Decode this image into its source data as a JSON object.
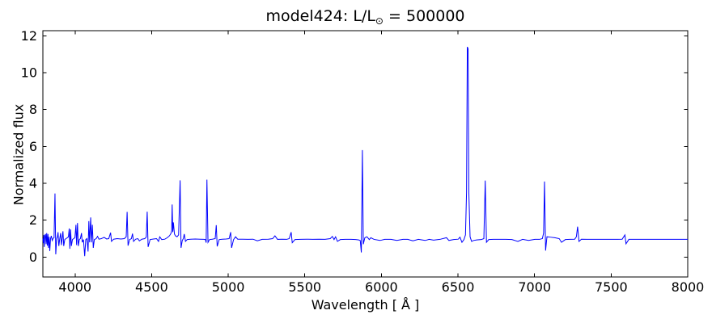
{
  "title": {
    "prefix": "model424: L/L",
    "sun_symbol": "⊙",
    "suffix": " = 500000"
  },
  "chart_data": {
    "type": "line",
    "title": "model424: L/L⊙ = 500000",
    "xlabel": "Wavelength [ Å ]",
    "ylabel": "Normalized flux",
    "xlim": [
      3790,
      8000
    ],
    "ylim": [
      -1.08,
      12.28
    ],
    "xticks": [
      4000,
      4500,
      5000,
      5500,
      6000,
      6500,
      7000,
      7500,
      8000
    ],
    "yticks": [
      0,
      2,
      4,
      6,
      8,
      10,
      12
    ],
    "grid": false,
    "legend": "none",
    "line_color": "#0000ff",
    "axis_color": "#000000",
    "background": "#ffffff",
    "series": [
      {
        "name": "normalized-flux-spectrum",
        "points": [
          [
            3790,
            1.0
          ],
          [
            3793,
            0.75
          ],
          [
            3796,
            1.2
          ],
          [
            3799,
            0.55
          ],
          [
            3803,
            1.15
          ],
          [
            3807,
            1.25
          ],
          [
            3811,
            0.7
          ],
          [
            3815,
            1.3
          ],
          [
            3819,
            0.62
          ],
          [
            3823,
            1.25
          ],
          [
            3827,
            0.5
          ],
          [
            3831,
            1.1
          ],
          [
            3835,
            0.33
          ],
          [
            3840,
            1.0
          ],
          [
            3845,
            1.15
          ],
          [
            3851,
            0.9
          ],
          [
            3857,
            1.02
          ],
          [
            3863,
            1.05
          ],
          [
            3869,
            3.45
          ],
          [
            3874,
            0.15
          ],
          [
            3880,
            1.0
          ],
          [
            3885,
            1.1
          ],
          [
            3889,
            1.35
          ],
          [
            3894,
            0.6
          ],
          [
            3900,
            1.0
          ],
          [
            3906,
            1.3
          ],
          [
            3911,
            0.65
          ],
          [
            3916,
            1.0
          ],
          [
            3921,
            1.4
          ],
          [
            3926,
            0.6
          ],
          [
            3933,
            0.95
          ],
          [
            3941,
            1.0
          ],
          [
            3950,
            1.05
          ],
          [
            3957,
            1.1
          ],
          [
            3962,
            1.55
          ],
          [
            3966,
            0.45
          ],
          [
            3971,
            1.5
          ],
          [
            3976,
            0.6
          ],
          [
            3983,
            0.95
          ],
          [
            3991,
            1.0
          ],
          [
            3999,
            1.05
          ],
          [
            4006,
            1.75
          ],
          [
            4010,
            0.65
          ],
          [
            4016,
            1.85
          ],
          [
            4021,
            0.6
          ],
          [
            4028,
            0.95
          ],
          [
            4035,
            1.0
          ],
          [
            4042,
            1.3
          ],
          [
            4047,
            0.8
          ],
          [
            4055,
            0.95
          ],
          [
            4063,
            0.05
          ],
          [
            4070,
            0.95
          ],
          [
            4078,
            1.0
          ],
          [
            4085,
            0.3
          ],
          [
            4090,
            1.95
          ],
          [
            4095,
            0.8
          ],
          [
            4102,
            2.15
          ],
          [
            4107,
            0.8
          ],
          [
            4113,
            1.75
          ],
          [
            4119,
            0.5
          ],
          [
            4126,
            0.95
          ],
          [
            4138,
            1.0
          ],
          [
            4147,
            1.12
          ],
          [
            4156,
            0.97
          ],
          [
            4172,
            1.0
          ],
          [
            4190,
            1.07
          ],
          [
            4206,
            0.98
          ],
          [
            4220,
            1.0
          ],
          [
            4232,
            1.32
          ],
          [
            4238,
            0.85
          ],
          [
            4252,
            0.97
          ],
          [
            4275,
            1.0
          ],
          [
            4300,
            0.98
          ],
          [
            4322,
            1.0
          ],
          [
            4334,
            1.1
          ],
          [
            4340,
            2.45
          ],
          [
            4346,
            0.62
          ],
          [
            4356,
            0.95
          ],
          [
            4368,
            1.0
          ],
          [
            4375,
            1.27
          ],
          [
            4382,
            0.85
          ],
          [
            4396,
            0.97
          ],
          [
            4410,
            1.0
          ],
          [
            4420,
            0.88
          ],
          [
            4436,
            0.97
          ],
          [
            4455,
            1.0
          ],
          [
            4465,
            1.08
          ],
          [
            4471,
            2.46
          ],
          [
            4477,
            0.55
          ],
          [
            4490,
            0.95
          ],
          [
            4512,
            0.98
          ],
          [
            4532,
            1.0
          ],
          [
            4545,
            0.85
          ],
          [
            4553,
            1.1
          ],
          [
            4566,
            0.95
          ],
          [
            4586,
            0.97
          ],
          [
            4602,
            1.05
          ],
          [
            4616,
            1.15
          ],
          [
            4626,
            1.28
          ],
          [
            4631,
            1.45
          ],
          [
            4634,
            2.85
          ],
          [
            4638,
            1.35
          ],
          [
            4642,
            1.88
          ],
          [
            4649,
            1.25
          ],
          [
            4656,
            1.15
          ],
          [
            4666,
            1.1
          ],
          [
            4676,
            1.2
          ],
          [
            4686,
            4.16
          ],
          [
            4692,
            0.5
          ],
          [
            4700,
            0.9
          ],
          [
            4707,
            1.0
          ],
          [
            4713,
            1.25
          ],
          [
            4721,
            0.85
          ],
          [
            4732,
            0.95
          ],
          [
            4755,
            0.97
          ],
          [
            4785,
            0.98
          ],
          [
            4815,
            0.97
          ],
          [
            4842,
            0.96
          ],
          [
            4851,
            0.95
          ],
          [
            4856,
            0.78
          ],
          [
            4861,
            4.2
          ],
          [
            4868,
            0.8
          ],
          [
            4878,
            0.95
          ],
          [
            4896,
            0.97
          ],
          [
            4915,
            1.0
          ],
          [
            4922,
            1.73
          ],
          [
            4928,
            0.58
          ],
          [
            4941,
            0.95
          ],
          [
            4962,
            0.97
          ],
          [
            4986,
            0.98
          ],
          [
            5006,
            1.0
          ],
          [
            5016,
            1.35
          ],
          [
            5022,
            0.5
          ],
          [
            5035,
            0.95
          ],
          [
            5048,
            1.1
          ],
          [
            5062,
            0.97
          ],
          [
            5095,
            0.97
          ],
          [
            5130,
            0.96
          ],
          [
            5162,
            0.97
          ],
          [
            5190,
            0.88
          ],
          [
            5222,
            0.96
          ],
          [
            5262,
            0.97
          ],
          [
            5290,
            1.0
          ],
          [
            5305,
            1.15
          ],
          [
            5322,
            0.96
          ],
          [
            5352,
            0.97
          ],
          [
            5382,
            0.96
          ],
          [
            5398,
            1.0
          ],
          [
            5411,
            1.35
          ],
          [
            5418,
            0.78
          ],
          [
            5436,
            0.95
          ],
          [
            5472,
            0.96
          ],
          [
            5512,
            0.97
          ],
          [
            5552,
            0.96
          ],
          [
            5592,
            0.97
          ],
          [
            5632,
            0.96
          ],
          [
            5666,
            1.0
          ],
          [
            5680,
            1.12
          ],
          [
            5691,
            0.95
          ],
          [
            5701,
            1.1
          ],
          [
            5713,
            0.85
          ],
          [
            5732,
            0.95
          ],
          [
            5766,
            0.96
          ],
          [
            5802,
            0.96
          ],
          [
            5832,
            0.95
          ],
          [
            5852,
            0.93
          ],
          [
            5862,
            0.9
          ],
          [
            5869,
            0.25
          ],
          [
            5876,
            5.8
          ],
          [
            5882,
            0.7
          ],
          [
            5892,
            1.05
          ],
          [
            5906,
            1.1
          ],
          [
            5921,
            0.95
          ],
          [
            5931,
            1.05
          ],
          [
            5952,
            0.96
          ],
          [
            5991,
            0.9
          ],
          [
            6022,
            0.96
          ],
          [
            6062,
            0.96
          ],
          [
            6101,
            0.9
          ],
          [
            6141,
            0.96
          ],
          [
            6172,
            0.96
          ],
          [
            6206,
            0.88
          ],
          [
            6242,
            0.96
          ],
          [
            6286,
            0.9
          ],
          [
            6312,
            0.96
          ],
          [
            6341,
            0.92
          ],
          [
            6382,
            0.96
          ],
          [
            6425,
            1.05
          ],
          [
            6441,
            0.9
          ],
          [
            6472,
            0.95
          ],
          [
            6502,
            0.97
          ],
          [
            6513,
            1.08
          ],
          [
            6526,
            0.8
          ],
          [
            6539,
            0.95
          ],
          [
            6549,
            1.2
          ],
          [
            6556,
            3.5
          ],
          [
            6561,
            11.4
          ],
          [
            6566,
            11.3
          ],
          [
            6571,
            3.5
          ],
          [
            6579,
            1.1
          ],
          [
            6589,
            0.85
          ],
          [
            6602,
            0.9
          ],
          [
            6622,
            0.93
          ],
          [
            6652,
            0.95
          ],
          [
            6669,
            1.0
          ],
          [
            6678,
            4.15
          ],
          [
            6686,
            0.8
          ],
          [
            6701,
            0.95
          ],
          [
            6732,
            0.96
          ],
          [
            6772,
            0.96
          ],
          [
            6812,
            0.96
          ],
          [
            6852,
            0.95
          ],
          [
            6891,
            0.85
          ],
          [
            6922,
            0.96
          ],
          [
            6961,
            0.9
          ],
          [
            7002,
            0.96
          ],
          [
            7032,
            0.96
          ],
          [
            7051,
            1.0
          ],
          [
            7059,
            1.3
          ],
          [
            7065,
            4.1
          ],
          [
            7072,
            0.35
          ],
          [
            7081,
            1.1
          ],
          [
            7102,
            1.08
          ],
          [
            7132,
            1.05
          ],
          [
            7161,
            1.0
          ],
          [
            7176,
            0.8
          ],
          [
            7201,
            0.95
          ],
          [
            7232,
            0.96
          ],
          [
            7262,
            0.97
          ],
          [
            7273,
            1.1
          ],
          [
            7281,
            1.65
          ],
          [
            7290,
            0.85
          ],
          [
            7306,
            0.97
          ],
          [
            7342,
            0.96
          ],
          [
            7382,
            0.96
          ],
          [
            7422,
            0.96
          ],
          [
            7462,
            0.96
          ],
          [
            7502,
            0.96
          ],
          [
            7542,
            0.96
          ],
          [
            7572,
            0.97
          ],
          [
            7590,
            1.2
          ],
          [
            7597,
            0.72
          ],
          [
            7616,
            0.96
          ],
          [
            7662,
            0.96
          ],
          [
            7712,
            0.96
          ],
          [
            7762,
            0.96
          ],
          [
            7812,
            0.96
          ],
          [
            7862,
            0.96
          ],
          [
            7912,
            0.96
          ],
          [
            7962,
            0.96
          ],
          [
            8000,
            0.96
          ]
        ]
      }
    ]
  }
}
